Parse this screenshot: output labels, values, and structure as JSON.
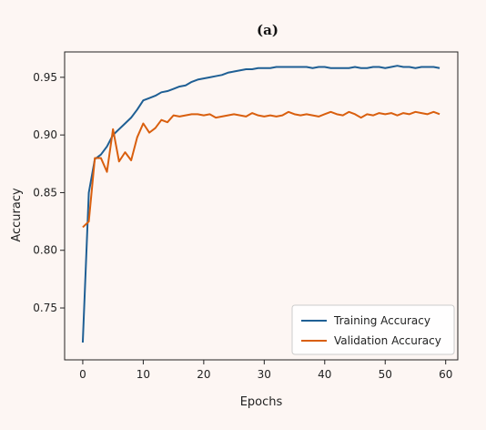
{
  "chart_data": {
    "type": "line",
    "title": "(a)",
    "xlabel": "Epochs",
    "ylabel": "Accuracy",
    "xlim": [
      -3,
      62
    ],
    "ylim": [
      0.705,
      0.972
    ],
    "xticks": [
      0,
      10,
      20,
      30,
      40,
      50,
      60
    ],
    "yticks": [
      0.75,
      0.8,
      0.85,
      0.9,
      0.95
    ],
    "ytick_labels": [
      "0.75",
      "0.80",
      "0.85",
      "0.90",
      "0.95"
    ],
    "grid": false,
    "legend_position": "lower-right",
    "x": [
      0,
      1,
      2,
      3,
      4,
      5,
      6,
      7,
      8,
      9,
      10,
      11,
      12,
      13,
      14,
      15,
      16,
      17,
      18,
      19,
      20,
      21,
      22,
      23,
      24,
      25,
      26,
      27,
      28,
      29,
      30,
      31,
      32,
      33,
      34,
      35,
      36,
      37,
      38,
      39,
      40,
      41,
      42,
      43,
      44,
      45,
      46,
      47,
      48,
      49,
      50,
      51,
      52,
      53,
      54,
      55,
      56,
      57,
      58,
      59
    ],
    "series": [
      {
        "name": "Training Accuracy",
        "color": "#1f5f94",
        "values": [
          0.72,
          0.85,
          0.879,
          0.883,
          0.89,
          0.9,
          0.905,
          0.91,
          0.915,
          0.922,
          0.93,
          0.932,
          0.934,
          0.937,
          0.938,
          0.94,
          0.942,
          0.943,
          0.946,
          0.948,
          0.949,
          0.95,
          0.951,
          0.952,
          0.954,
          0.955,
          0.956,
          0.957,
          0.957,
          0.958,
          0.958,
          0.958,
          0.959,
          0.959,
          0.959,
          0.959,
          0.959,
          0.959,
          0.958,
          0.959,
          0.959,
          0.958,
          0.958,
          0.958,
          0.958,
          0.959,
          0.958,
          0.958,
          0.959,
          0.959,
          0.958,
          0.959,
          0.96,
          0.959,
          0.959,
          0.958,
          0.959,
          0.959,
          0.959,
          0.958
        ]
      },
      {
        "name": "Validation Accuracy",
        "color": "#d95f0e",
        "values": [
          0.82,
          0.825,
          0.88,
          0.88,
          0.868,
          0.905,
          0.877,
          0.885,
          0.878,
          0.898,
          0.91,
          0.902,
          0.906,
          0.913,
          0.911,
          0.917,
          0.916,
          0.917,
          0.918,
          0.918,
          0.917,
          0.918,
          0.915,
          0.916,
          0.917,
          0.918,
          0.917,
          0.916,
          0.919,
          0.917,
          0.916,
          0.917,
          0.916,
          0.917,
          0.92,
          0.918,
          0.917,
          0.918,
          0.917,
          0.916,
          0.918,
          0.92,
          0.918,
          0.917,
          0.92,
          0.918,
          0.915,
          0.918,
          0.917,
          0.919,
          0.918,
          0.919,
          0.917,
          0.919,
          0.918,
          0.92,
          0.919,
          0.918,
          0.92,
          0.918
        ]
      }
    ]
  }
}
